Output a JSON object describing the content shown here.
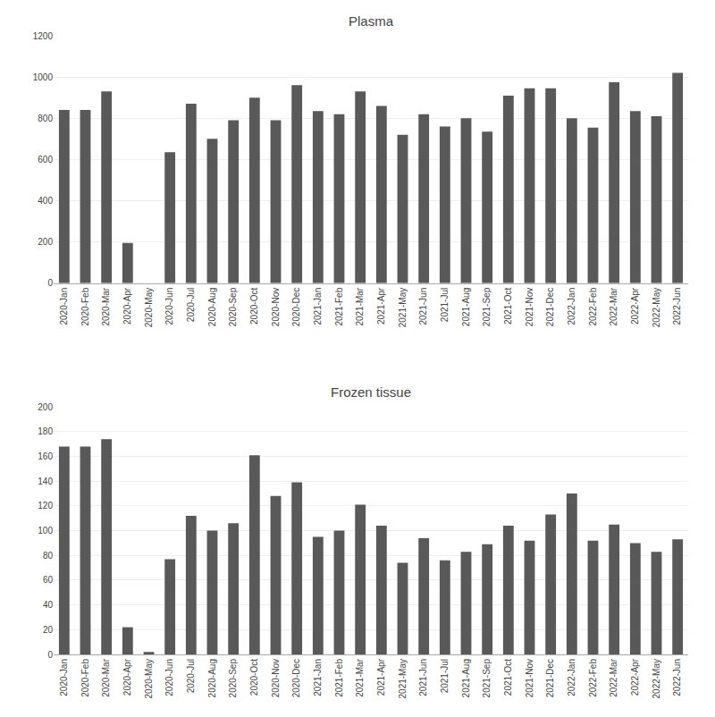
{
  "chart_data": [
    {
      "type": "bar",
      "title": "Plasma",
      "categories": [
        "2020-Jan",
        "2020-Feb",
        "2020-Mar",
        "2020-Apr",
        "2020-May",
        "2020-Jun",
        "2020-Jul",
        "2020-Aug",
        "2020-Sep",
        "2020-Oct",
        "2020-Nov",
        "2020-Dec",
        "2021-Jan",
        "2021-Feb",
        "2021-Mar",
        "2021-Apr",
        "2021-May",
        "2021-Jun",
        "2021-Jul",
        "2021-Aug",
        "2021-Sep",
        "2021-Oct",
        "2021-Nov",
        "2021-Dec",
        "2022-Jan",
        "2022-Feb",
        "2022-Mar",
        "2022-Apr",
        "2022-May",
        "2022-Jun"
      ],
      "values": [
        840,
        840,
        930,
        195,
        0,
        635,
        870,
        700,
        790,
        900,
        790,
        960,
        835,
        820,
        930,
        860,
        720,
        820,
        760,
        800,
        735,
        910,
        945,
        945,
        800,
        755,
        975,
        835,
        810,
        1020
      ],
      "color": "#595959",
      "ylim": [
        0,
        1200
      ],
      "yticks": [
        0,
        200,
        400,
        600,
        800,
        1000,
        1200
      ],
      "grid": true
    },
    {
      "type": "bar",
      "title": "Frozen tissue",
      "categories": [
        "2020-Jan",
        "2020-Feb",
        "2020-Mar",
        "2020-Apr",
        "2020-May",
        "2020-Jun",
        "2020-Jul",
        "2020-Aug",
        "2020-Sep",
        "2020-Oct",
        "2020-Nov",
        "2020-Dec",
        "2021-Jan",
        "2021-Feb",
        "2021-Mar",
        "2021-Apr",
        "2021-May",
        "2021-Jun",
        "2021-Jul",
        "2021-Aug",
        "2021-Sep",
        "2021-Oct",
        "2021-Nov",
        "2021-Dec",
        "2022-Jan",
        "2022-Feb",
        "2022-Mar",
        "2022-Apr",
        "2022-May",
        "2022-Jun"
      ],
      "values": [
        168,
        168,
        174,
        22,
        2,
        77,
        112,
        100,
        106,
        161,
        128,
        139,
        95,
        100,
        121,
        104,
        74,
        94,
        76,
        83,
        89,
        104,
        92,
        113,
        130,
        92,
        105,
        90,
        83,
        93
      ],
      "color": "#595959",
      "ylim": [
        0,
        200
      ],
      "yticks": [
        0,
        20,
        40,
        60,
        80,
        100,
        120,
        140,
        160,
        180,
        200
      ],
      "grid": true
    }
  ]
}
